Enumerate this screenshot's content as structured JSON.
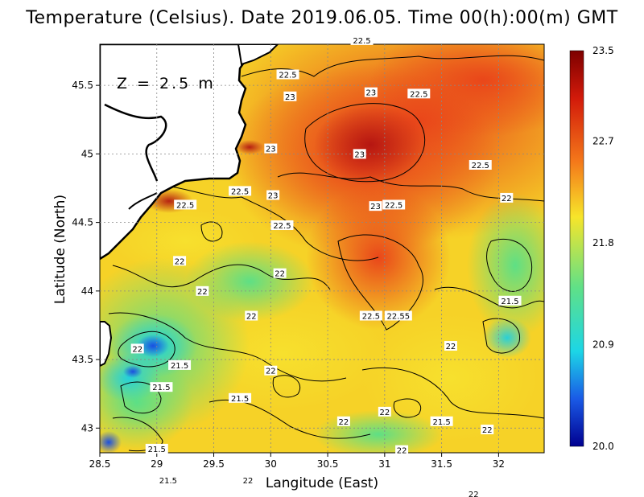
{
  "title": "Temperature (Celsius). Date 2019.06.05. Time 00(h):00(m) GMT",
  "depth_label": "Z = 2.5 m",
  "x_label": "Langitude (East)",
  "y_label": "Latitude (North)",
  "x_ticks": [
    "28.5",
    "29",
    "29.5",
    "30",
    "30.5",
    "31",
    "31.5",
    "32"
  ],
  "y_ticks": [
    "43",
    "43.5",
    "44",
    "44.5",
    "45",
    "45.5"
  ],
  "colorbar": {
    "ticks": [
      "23.5",
      "22.7",
      "21.8",
      "20.9",
      "20.0"
    ],
    "min": 20.0,
    "max": 23.5
  },
  "colors": {
    "land": "#ffffff",
    "coast": "#000000",
    "warm": "#e53a10",
    "mid": "#f5d423",
    "cool": "#6fe28a"
  },
  "contour_labels": [
    {
      "text": "22.5",
      "lon": 30.8,
      "lat": 45.83
    },
    {
      "text": "22.5",
      "lon": 30.15,
      "lat": 45.58
    },
    {
      "text": "23",
      "lon": 30.17,
      "lat": 45.42
    },
    {
      "text": "23",
      "lon": 30.88,
      "lat": 45.45
    },
    {
      "text": "22.5",
      "lon": 31.3,
      "lat": 45.44
    },
    {
      "text": "23",
      "lon": 30.0,
      "lat": 45.04
    },
    {
      "text": "23",
      "lon": 30.78,
      "lat": 45.0
    },
    {
      "text": "22.5",
      "lon": 31.84,
      "lat": 44.92
    },
    {
      "text": "22.5",
      "lon": 29.25,
      "lat": 44.63
    },
    {
      "text": "22.5",
      "lon": 29.73,
      "lat": 44.73
    },
    {
      "text": "23",
      "lon": 30.02,
      "lat": 44.7
    },
    {
      "text": "23",
      "lon": 30.92,
      "lat": 44.62
    },
    {
      "text": "22.5",
      "lon": 31.08,
      "lat": 44.63
    },
    {
      "text": "22",
      "lon": 32.07,
      "lat": 44.68
    },
    {
      "text": "22.5",
      "lon": 30.1,
      "lat": 44.48
    },
    {
      "text": "22",
      "lon": 29.2,
      "lat": 44.22
    },
    {
      "text": "22",
      "lon": 30.08,
      "lat": 44.13
    },
    {
      "text": "22",
      "lon": 29.83,
      "lat": 43.82
    },
    {
      "text": "22",
      "lon": 29.4,
      "lat": 44.0
    },
    {
      "text": "22.5",
      "lon": 30.88,
      "lat": 43.82
    },
    {
      "text": "22.55",
      "lon": 31.12,
      "lat": 43.82
    },
    {
      "text": "21.5",
      "lon": 32.1,
      "lat": 43.93
    },
    {
      "text": "22",
      "lon": 28.83,
      "lat": 43.58
    },
    {
      "text": "22",
      "lon": 31.58,
      "lat": 43.6
    },
    {
      "text": "22",
      "lon": 30.0,
      "lat": 43.42
    },
    {
      "text": "21.5",
      "lon": 29.73,
      "lat": 43.22
    },
    {
      "text": "21.5",
      "lon": 29.2,
      "lat": 43.46
    },
    {
      "text": "21.5",
      "lon": 29.04,
      "lat": 43.3
    },
    {
      "text": "22",
      "lon": 31.0,
      "lat": 43.12
    },
    {
      "text": "21.5",
      "lon": 31.5,
      "lat": 43.05
    },
    {
      "text": "22",
      "lon": 30.64,
      "lat": 43.05
    },
    {
      "text": "21.5",
      "lon": 29.0,
      "lat": 42.85
    },
    {
      "text": "22",
      "lon": 31.9,
      "lat": 42.99
    },
    {
      "text": "22",
      "lon": 31.15,
      "lat": 42.84
    },
    {
      "text": "21.5",
      "lon": 29.1,
      "lat": 42.62
    },
    {
      "text": "22",
      "lon": 29.8,
      "lat": 42.62
    },
    {
      "text": "22",
      "lon": 31.78,
      "lat": 42.52
    }
  ]
}
